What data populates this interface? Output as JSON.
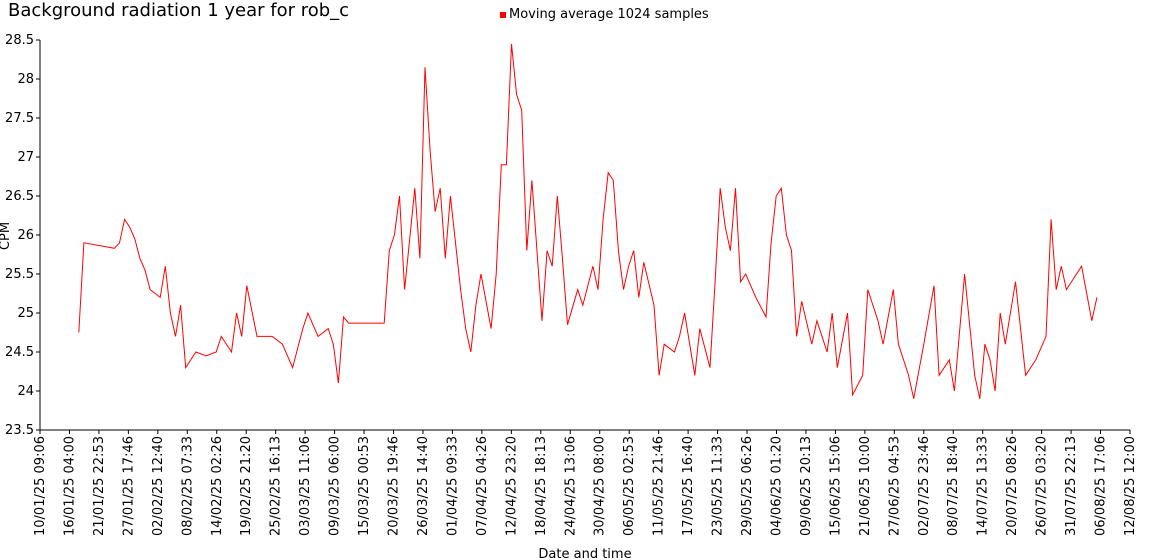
{
  "chart_data": {
    "type": "line",
    "title": "Background radiation 1 year for rob_c",
    "xlabel": "Date and time",
    "ylabel": "CPM",
    "series": [
      {
        "name": "Moving average 1024 samples",
        "color": "#ff0000",
        "values": [
          24.75,
          25.9,
          25.83,
          25.9,
          26.2,
          26.1,
          25.95,
          25.7,
          25.55,
          25.3,
          25.2,
          25.6,
          25.0,
          24.7,
          25.1,
          24.3,
          24.5,
          24.45,
          24.5,
          24.7,
          24.5,
          25.0,
          24.7,
          25.35,
          24.7,
          24.7,
          24.6,
          24.3,
          24.8,
          25.0,
          24.7,
          24.8,
          24.6,
          24.1,
          24.95,
          24.87,
          24.87,
          25.8,
          26.0,
          26.5,
          25.3,
          26.6,
          25.7,
          28.15,
          27.1,
          26.3,
          26.6,
          25.7,
          26.5,
          25.9,
          25.3,
          24.8,
          24.5,
          25.1,
          25.5,
          24.8,
          25.5,
          26.9,
          26.9,
          28.45,
          27.8,
          27.6,
          25.8,
          26.7,
          24.9,
          25.8,
          25.6,
          26.5,
          25.7,
          24.85,
          25.3,
          25.1,
          25.6,
          25.3,
          26.2,
          26.8,
          26.7,
          25.8,
          25.3,
          25.6,
          25.8,
          25.2,
          25.65,
          25.1,
          24.2,
          24.6,
          24.5,
          24.7,
          25.0,
          24.2,
          24.8,
          24.3,
          25.4,
          26.6,
          26.1,
          25.8,
          26.6,
          25.4,
          25.5,
          25.2,
          24.95,
          25.9,
          26.5,
          26.6,
          26.0,
          25.8,
          24.7,
          25.15,
          24.6,
          24.9,
          24.5,
          25.0,
          24.3,
          25.0,
          23.95,
          24.2,
          25.3,
          24.9,
          24.6,
          25.3,
          24.6,
          24.2,
          23.9,
          24.6,
          25.35,
          24.2,
          24.4,
          24.0,
          25.5,
          24.2,
          23.9,
          24.6,
          24.4,
          24.0,
          25.0,
          24.6,
          25.4,
          24.2,
          24.4,
          24.7,
          26.2,
          25.3,
          25.6,
          25.3,
          25.5,
          25.6,
          24.9,
          25.2
        ]
      }
    ],
    "x": [
      "18/01/25",
      "19/01/25",
      "25/01/25",
      "26/01/25",
      "27/01/25",
      "28/01/25",
      "29/01/25",
      "30/01/25",
      "31/01/25",
      "01/02/25",
      "03/02/25",
      "04/02/25",
      "05/02/25",
      "06/02/25",
      "07/02/25",
      "08/02/25",
      "10/02/25",
      "12/02/25",
      "14/02/25",
      "15/02/25",
      "17/02/25",
      "18/02/25",
      "19/02/25",
      "20/02/25",
      "22/02/25",
      "25/02/25",
      "27/02/25",
      "01/03/25",
      "03/03/25",
      "04/03/25",
      "06/03/25",
      "08/03/25",
      "09/03/25",
      "10/03/25",
      "11/03/25",
      "12/03/25",
      "19/03/25",
      "20/03/25",
      "21/03/25",
      "22/03/25",
      "23/03/25",
      "25/03/25",
      "26/03/25",
      "27/03/25",
      "28/03/25",
      "29/03/25",
      "30/03/25",
      "31/03/25",
      "01/04/25",
      "02/04/25",
      "03/04/25",
      "04/04/25",
      "05/04/25",
      "06/04/25",
      "07/04/25",
      "09/04/25",
      "10/04/25",
      "11/04/25",
      "12/04/25",
      "13/04/25",
      "14/04/25",
      "15/04/25",
      "16/04/25",
      "17/04/25",
      "19/04/25",
      "20/04/25",
      "21/04/25",
      "22/04/25",
      "23/04/25",
      "24/04/25",
      "26/04/25",
      "27/04/25",
      "29/04/25",
      "30/04/25",
      "01/05/25",
      "02/05/25",
      "03/05/25",
      "04/05/25",
      "05/05/25",
      "06/05/25",
      "07/05/25",
      "08/05/25",
      "09/05/25",
      "11/05/25",
      "12/05/25",
      "13/05/25",
      "15/05/25",
      "16/05/25",
      "17/05/25",
      "19/05/25",
      "20/05/25",
      "22/05/25",
      "23/05/25",
      "24/05/25",
      "25/05/25",
      "26/05/25",
      "27/05/25",
      "28/05/25",
      "29/05/25",
      "31/05/25",
      "02/06/25",
      "03/06/25",
      "04/06/25",
      "05/06/25",
      "06/06/25",
      "07/06/25",
      "08/06/25",
      "09/06/25",
      "11/06/25",
      "12/06/25",
      "14/06/25",
      "15/06/25",
      "16/06/25",
      "18/06/25",
      "19/06/25",
      "21/06/25",
      "22/06/25",
      "24/06/25",
      "25/06/25",
      "27/06/25",
      "28/06/25",
      "30/06/25",
      "01/07/25",
      "03/07/25",
      "05/07/25",
      "06/07/25",
      "08/07/25",
      "09/07/25",
      "11/07/25",
      "13/07/25",
      "14/07/25",
      "15/07/25",
      "16/07/25",
      "17/07/25",
      "18/07/25",
      "19/07/25",
      "21/07/25",
      "23/07/25",
      "25/07/25",
      "27/07/25",
      "28/07/25",
      "29/07/25",
      "30/07/25",
      "31/07/25",
      "02/08/25",
      "03/08/25",
      "05/08/25",
      "06/08/25"
    ],
    "xlim": [
      "10/01/25 09:06",
      "12/08/25 12:00"
    ],
    "xticks": [
      "10/01/25 09:06",
      "16/01/25 04:00",
      "21/01/25 22:53",
      "27/01/25 17:46",
      "02/02/25 12:40",
      "08/02/25 07:33",
      "14/02/25 02:26",
      "19/02/25 21:20",
      "25/02/25 16:13",
      "03/03/25 11:06",
      "09/03/25 06:00",
      "15/03/25 00:53",
      "20/03/25 19:46",
      "26/03/25 14:40",
      "01/04/25 09:33",
      "07/04/25 04:26",
      "12/04/25 23:20",
      "18/04/25 18:13",
      "24/04/25 13:06",
      "30/04/25 08:00",
      "06/05/25 02:53",
      "11/05/25 21:46",
      "17/05/25 16:40",
      "23/05/25 11:33",
      "29/05/25 06:26",
      "04/06/25 01:20",
      "09/06/25 20:13",
      "15/06/25 15:06",
      "21/06/25 10:00",
      "27/06/25 04:53",
      "02/07/25 23:46",
      "08/07/25 18:40",
      "14/07/25 13:33",
      "20/07/25 08:26",
      "26/07/25 03:20",
      "31/07/25 22:13",
      "06/08/25 17:06",
      "12/08/25 12:00"
    ],
    "ylim": [
      23.5,
      28.5
    ],
    "yticks": [
      23.5,
      24,
      24.5,
      25,
      25.5,
      26,
      26.5,
      27,
      27.5,
      28,
      28.5
    ],
    "legend": "top"
  }
}
